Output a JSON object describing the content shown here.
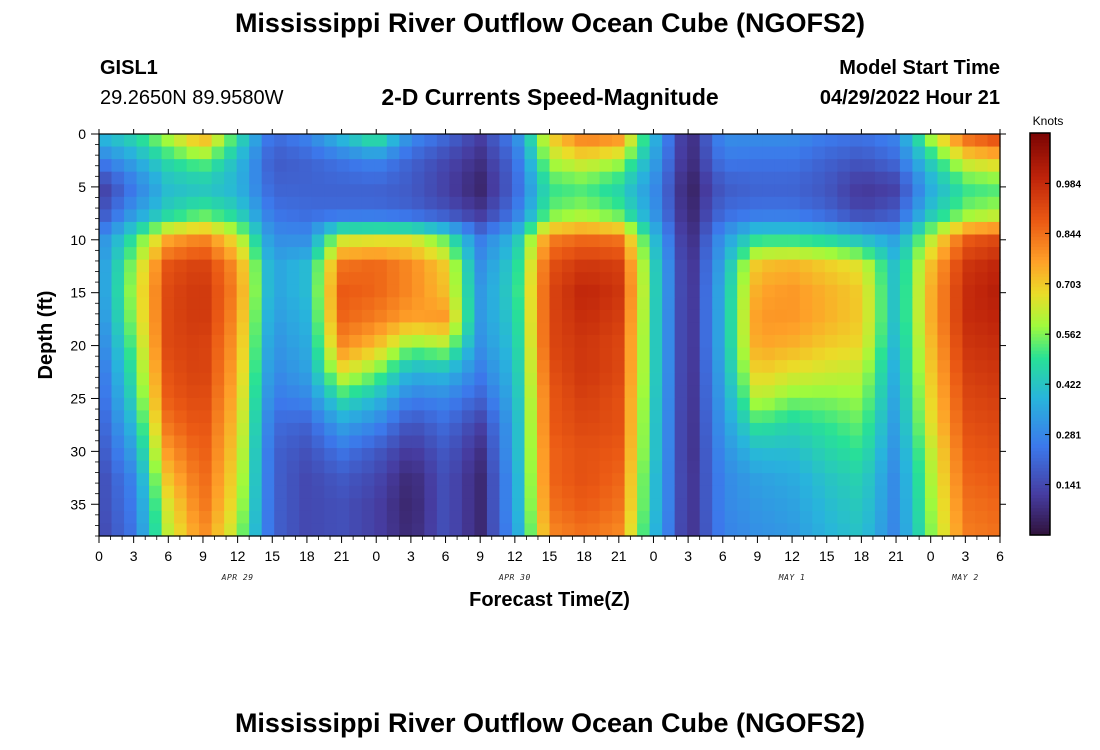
{
  "header": {
    "title": "Mississippi River Outflow Ocean Cube (NGOFS2)",
    "station": "GISL1",
    "coords": "29.2650N  89.9580W",
    "subtitle": "2-D Currents Speed-Magnitude",
    "start_label": "Model Start Time",
    "start_value": "04/29/2022 Hour 21"
  },
  "footer": {
    "title": "Mississippi River Outflow Ocean Cube (NGOFS2)"
  },
  "colors": {
    "bg": "#ffffff",
    "axis": "#000000"
  },
  "chart_data": {
    "type": "heatmap",
    "title": "2-D Currents Speed-Magnitude",
    "xlabel": "Forecast Time(Z)",
    "ylabel": "Depth (ft)",
    "x_range_hours": [
      0,
      78
    ],
    "x_ticks": [
      {
        "h": 0,
        "label": "0"
      },
      {
        "h": 3,
        "label": "3"
      },
      {
        "h": 6,
        "label": "6"
      },
      {
        "h": 9,
        "label": "9"
      },
      {
        "h": 12,
        "label": "12"
      },
      {
        "h": 15,
        "label": "15"
      },
      {
        "h": 18,
        "label": "18"
      },
      {
        "h": 21,
        "label": "21"
      },
      {
        "h": 24,
        "label": "0"
      },
      {
        "h": 27,
        "label": "3"
      },
      {
        "h": 30,
        "label": "6"
      },
      {
        "h": 33,
        "label": "9"
      },
      {
        "h": 36,
        "label": "12"
      },
      {
        "h": 39,
        "label": "15"
      },
      {
        "h": 42,
        "label": "18"
      },
      {
        "h": 45,
        "label": "21"
      },
      {
        "h": 48,
        "label": "0"
      },
      {
        "h": 51,
        "label": "3"
      },
      {
        "h": 54,
        "label": "6"
      },
      {
        "h": 57,
        "label": "9"
      },
      {
        "h": 60,
        "label": "12"
      },
      {
        "h": 63,
        "label": "15"
      },
      {
        "h": 66,
        "label": "18"
      },
      {
        "h": 69,
        "label": "21"
      },
      {
        "h": 72,
        "label": "0"
      },
      {
        "h": 75,
        "label": "3"
      },
      {
        "h": 78,
        "label": "6"
      }
    ],
    "date_labels": [
      {
        "h": 12,
        "label": "APR 29"
      },
      {
        "h": 36,
        "label": "APR 30"
      },
      {
        "h": 60,
        "label": "MAY 1"
      },
      {
        "h": 75,
        "label": "MAY 2"
      }
    ],
    "y_range_ft": [
      0,
      38
    ],
    "y_ticks": [
      0,
      5,
      10,
      15,
      20,
      25,
      30,
      35
    ],
    "colorbar": {
      "unit": "Knots",
      "min": 0.0,
      "max": 1.125,
      "tick_values": [
        0.141,
        0.281,
        0.422,
        0.562,
        0.703,
        0.844,
        0.984
      ],
      "tick_labels": [
        "0.141",
        "0.281",
        "0.422",
        "0.562",
        "0.703",
        "0.844",
        "0.984"
      ]
    },
    "field": {
      "time_hours": [
        0,
        3,
        6,
        9,
        12,
        15,
        18,
        21,
        24,
        27,
        30,
        33,
        36,
        39,
        42,
        45,
        48,
        51,
        54,
        57,
        60,
        63,
        66,
        69,
        72,
        75,
        78
      ],
      "depth_ft": [
        0,
        2.5,
        5,
        7.5,
        10,
        12.5,
        15,
        17.5,
        20,
        22.5,
        25,
        27.5,
        30,
        32.5,
        35,
        38
      ],
      "rows": [
        [
          0.4,
          0.48,
          0.62,
          0.78,
          0.5,
          0.22,
          0.28,
          0.42,
          0.55,
          0.3,
          0.22,
          0.12,
          0.28,
          0.7,
          0.85,
          0.82,
          0.4,
          0.05,
          0.3,
          0.3,
          0.3,
          0.26,
          0.24,
          0.28,
          0.62,
          0.88,
          0.95
        ],
        [
          0.25,
          0.35,
          0.48,
          0.55,
          0.4,
          0.18,
          0.2,
          0.24,
          0.28,
          0.2,
          0.14,
          0.08,
          0.22,
          0.6,
          0.66,
          0.6,
          0.35,
          0.05,
          0.25,
          0.24,
          0.24,
          0.2,
          0.17,
          0.22,
          0.45,
          0.66,
          0.7
        ],
        [
          0.1,
          0.25,
          0.4,
          0.42,
          0.38,
          0.2,
          0.2,
          0.2,
          0.2,
          0.18,
          0.12,
          0.05,
          0.2,
          0.5,
          0.52,
          0.46,
          0.3,
          0.03,
          0.18,
          0.2,
          0.2,
          0.17,
          0.1,
          0.12,
          0.36,
          0.5,
          0.52
        ],
        [
          0.15,
          0.32,
          0.45,
          0.52,
          0.45,
          0.24,
          0.22,
          0.22,
          0.22,
          0.2,
          0.16,
          0.1,
          0.24,
          0.54,
          0.58,
          0.52,
          0.32,
          0.04,
          0.22,
          0.24,
          0.24,
          0.2,
          0.13,
          0.18,
          0.42,
          0.56,
          0.6
        ],
        [
          0.28,
          0.5,
          0.76,
          0.82,
          0.66,
          0.3,
          0.3,
          0.64,
          0.66,
          0.66,
          0.54,
          0.26,
          0.4,
          0.82,
          0.86,
          0.84,
          0.42,
          0.05,
          0.32,
          0.5,
          0.5,
          0.48,
          0.42,
          0.34,
          0.62,
          0.88,
          0.92
        ],
        [
          0.3,
          0.58,
          0.9,
          0.94,
          0.78,
          0.34,
          0.4,
          0.84,
          0.86,
          0.8,
          0.7,
          0.3,
          0.45,
          0.9,
          0.96,
          0.94,
          0.46,
          0.06,
          0.36,
          0.72,
          0.74,
          0.7,
          0.66,
          0.4,
          0.72,
          0.96,
          1.0
        ],
        [
          0.3,
          0.6,
          0.92,
          0.96,
          0.8,
          0.34,
          0.4,
          0.88,
          0.86,
          0.8,
          0.72,
          0.32,
          0.46,
          0.92,
          1.0,
          0.96,
          0.47,
          0.06,
          0.38,
          0.76,
          0.78,
          0.74,
          0.7,
          0.4,
          0.74,
          0.98,
          1.02
        ],
        [
          0.28,
          0.58,
          0.92,
          0.96,
          0.78,
          0.32,
          0.38,
          0.86,
          0.82,
          0.76,
          0.78,
          0.32,
          0.44,
          0.92,
          0.98,
          0.94,
          0.46,
          0.06,
          0.38,
          0.78,
          0.78,
          0.74,
          0.7,
          0.4,
          0.74,
          0.98,
          1.0
        ],
        [
          0.25,
          0.54,
          0.92,
          0.94,
          0.76,
          0.3,
          0.36,
          0.8,
          0.72,
          0.56,
          0.6,
          0.3,
          0.42,
          0.92,
          0.96,
          0.92,
          0.46,
          0.06,
          0.38,
          0.76,
          0.74,
          0.7,
          0.68,
          0.38,
          0.72,
          0.96,
          0.98
        ],
        [
          0.22,
          0.5,
          0.9,
          0.94,
          0.74,
          0.28,
          0.34,
          0.66,
          0.56,
          0.38,
          0.4,
          0.26,
          0.4,
          0.9,
          0.96,
          0.92,
          0.46,
          0.06,
          0.36,
          0.7,
          0.66,
          0.64,
          0.62,
          0.36,
          0.7,
          0.94,
          0.96
        ],
        [
          0.2,
          0.46,
          0.88,
          0.92,
          0.72,
          0.25,
          0.28,
          0.48,
          0.4,
          0.26,
          0.28,
          0.2,
          0.38,
          0.88,
          0.94,
          0.9,
          0.45,
          0.06,
          0.34,
          0.62,
          0.56,
          0.56,
          0.58,
          0.34,
          0.68,
          0.92,
          0.94
        ],
        [
          0.18,
          0.4,
          0.84,
          0.9,
          0.7,
          0.22,
          0.2,
          0.34,
          0.28,
          0.16,
          0.22,
          0.12,
          0.36,
          0.88,
          0.92,
          0.9,
          0.44,
          0.06,
          0.32,
          0.5,
          0.46,
          0.5,
          0.54,
          0.32,
          0.66,
          0.9,
          0.92
        ],
        [
          0.16,
          0.34,
          0.78,
          0.88,
          0.68,
          0.2,
          0.16,
          0.24,
          0.18,
          0.1,
          0.18,
          0.08,
          0.36,
          0.86,
          0.9,
          0.88,
          0.44,
          0.06,
          0.3,
          0.4,
          0.4,
          0.46,
          0.5,
          0.3,
          0.62,
          0.88,
          0.9
        ],
        [
          0.14,
          0.28,
          0.72,
          0.86,
          0.66,
          0.2,
          0.14,
          0.18,
          0.14,
          0.06,
          0.16,
          0.06,
          0.34,
          0.86,
          0.9,
          0.86,
          0.42,
          0.07,
          0.28,
          0.34,
          0.36,
          0.42,
          0.46,
          0.28,
          0.6,
          0.86,
          0.88
        ],
        [
          0.14,
          0.26,
          0.66,
          0.84,
          0.64,
          0.2,
          0.14,
          0.16,
          0.12,
          0.05,
          0.16,
          0.06,
          0.34,
          0.84,
          0.88,
          0.84,
          0.42,
          0.07,
          0.28,
          0.32,
          0.34,
          0.4,
          0.44,
          0.28,
          0.58,
          0.84,
          0.86
        ],
        [
          0.13,
          0.24,
          0.62,
          0.8,
          0.6,
          0.2,
          0.14,
          0.16,
          0.12,
          0.06,
          0.16,
          0.06,
          0.32,
          0.8,
          0.84,
          0.8,
          0.4,
          0.07,
          0.27,
          0.3,
          0.32,
          0.38,
          0.42,
          0.27,
          0.56,
          0.82,
          0.84
        ]
      ]
    }
  }
}
